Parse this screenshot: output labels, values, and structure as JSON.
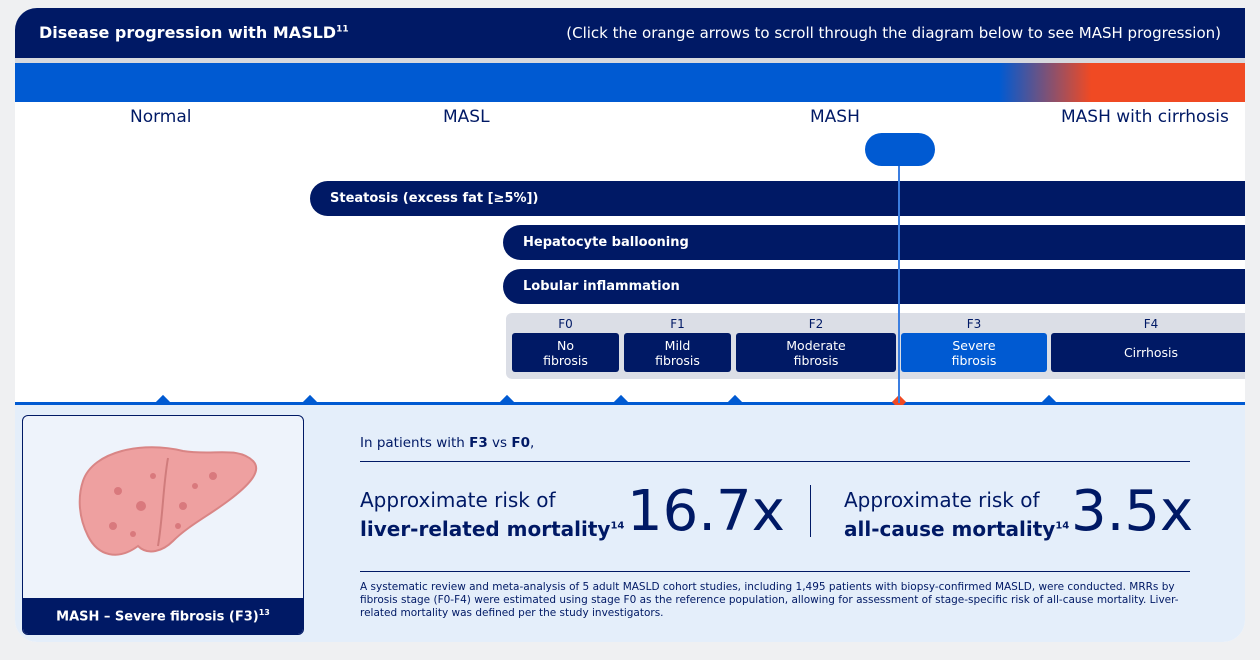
{
  "header": {
    "title": "Disease progression with MASLD",
    "title_sup": "11",
    "hint": "(Click the orange arrows to scroll through the diagram below to see MASH progression)"
  },
  "colors": {
    "navy": "#001965",
    "blue": "#005ad2",
    "orange": "#f04a23"
  },
  "stages": [
    "Normal",
    "MASL",
    "MASH",
    "MASH with cirrhosis"
  ],
  "bars": [
    "Steatosis (excess fat [≥5%])",
    "Hepatocyte ballooning",
    "Lobular inflammation"
  ],
  "fibrosis": [
    {
      "stage": "F0",
      "line1": "No",
      "line2": "fibrosis"
    },
    {
      "stage": "F1",
      "line1": "Mild",
      "line2": "fibrosis"
    },
    {
      "stage": "F2",
      "line1": "Moderate",
      "line2": "fibrosis"
    },
    {
      "stage": "F3",
      "line1": "Severe",
      "line2": "fibrosis",
      "selected": true
    },
    {
      "stage": "F4",
      "line1": "Cirrhosis",
      "line2": ""
    }
  ],
  "panel": {
    "image_caption": "MASH – Severe fibrosis (F3)",
    "image_caption_sup": "13",
    "intro_pre": "In patients with ",
    "intro_a": "F3",
    "intro_mid": " vs ",
    "intro_b": "F0",
    "intro_post": ",",
    "risk1_line1": "Approximate risk of",
    "risk1_line2": "liver-related mortality",
    "risk1_sup": "14",
    "risk1_value": "16.7x",
    "risk2_line1": "Approximate risk of",
    "risk2_line2": "all-cause mortality",
    "risk2_sup": "14",
    "risk2_value": "3.5x",
    "footnote": "A systematic review and meta-analysis of 5 adult MASLD cohort studies, including 1,495 patients with biopsy-confirmed MASLD, were conducted. MRRs by fibrosis stage (F0-F4) were estimated using stage F0 as the reference population, allowing for assessment of stage-specific risk of all-cause mortality. Liver-related mortality was defined per the study investigators."
  }
}
